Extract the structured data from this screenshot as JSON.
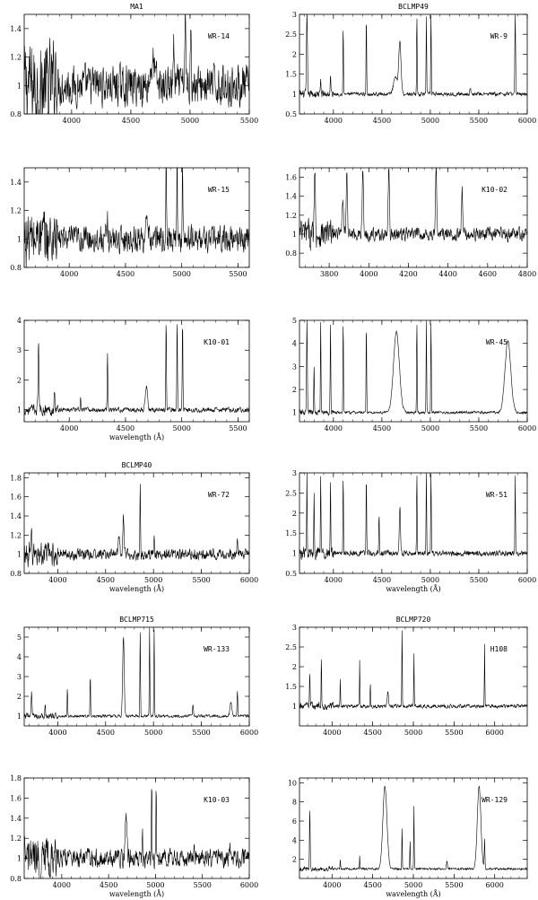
{
  "chart_data": [
    {
      "type": "line",
      "title": "MA1",
      "object": "WR-14",
      "xlabel": "",
      "xlim": [
        3600,
        5500
      ],
      "ylim": [
        0.8,
        1.5
      ],
      "xticks": [
        4000,
        4500,
        5000,
        5500
      ],
      "yticks": [
        0.8,
        1,
        1.2,
        1.4
      ],
      "continuum": 1.0,
      "noise": 0.12,
      "lines": [
        [
          3868,
          1.17,
          8
        ],
        [
          4686,
          1.16,
          18
        ],
        [
          4861,
          1.28,
          4
        ],
        [
          4959,
          1.5,
          4
        ],
        [
          5007,
          1.5,
          4
        ]
      ]
    },
    {
      "type": "line",
      "title": "BCLMP49",
      "object": "WR-9",
      "xlabel": "",
      "xlim": [
        3650,
        6000
      ],
      "ylim": [
        0.5,
        3.0
      ],
      "xticks": [
        4000,
        4500,
        5000,
        5500,
        6000
      ],
      "yticks": [
        0.5,
        1,
        1.5,
        2,
        2.5,
        3
      ],
      "continuum": 1.0,
      "noise": 0.04,
      "lines": [
        [
          3727,
          3.0,
          5
        ],
        [
          3869,
          1.4,
          3
        ],
        [
          3970,
          1.5,
          3
        ],
        [
          4101,
          2.7,
          3
        ],
        [
          4340,
          3.0,
          3
        ],
        [
          4640,
          1.4,
          20
        ],
        [
          4686,
          2.3,
          12
        ],
        [
          4861,
          3.0,
          3
        ],
        [
          4959,
          3.0,
          3
        ],
        [
          5007,
          3.0,
          3
        ],
        [
          5412,
          1.15,
          5
        ],
        [
          5876,
          3.0,
          4
        ]
      ]
    },
    {
      "type": "line",
      "title": "",
      "object": "WR-15",
      "xlabel": "",
      "xlim": [
        3600,
        5600
      ],
      "ylim": [
        0.8,
        1.5
      ],
      "xticks": [
        4000,
        4500,
        5000,
        5500
      ],
      "yticks": [
        0.8,
        1,
        1.2,
        1.4
      ],
      "continuum": 1.0,
      "noise": 0.08,
      "lines": [
        [
          3727,
          1.17,
          4
        ],
        [
          3869,
          1.13,
          3
        ],
        [
          4340,
          1.14,
          3
        ],
        [
          4686,
          1.1,
          10
        ],
        [
          4861,
          1.5,
          3
        ],
        [
          4959,
          1.5,
          3
        ],
        [
          5007,
          1.5,
          3
        ]
      ]
    },
    {
      "type": "line",
      "title": "",
      "object": "K10-02",
      "xlabel": "",
      "xlim": [
        3650,
        4800
      ],
      "ylim": [
        0.65,
        1.7
      ],
      "xticks": [
        3800,
        4000,
        4200,
        4400,
        4600,
        4800
      ],
      "yticks": [
        0.8,
        1,
        1.2,
        1.4,
        1.6
      ],
      "continuum": 1.0,
      "noise": 0.06,
      "lines": [
        [
          3727,
          1.7,
          3
        ],
        [
          3869,
          1.4,
          4
        ],
        [
          3889,
          1.7,
          3
        ],
        [
          3970,
          1.7,
          3
        ],
        [
          4101,
          1.7,
          3
        ],
        [
          4340,
          1.7,
          3
        ],
        [
          4471,
          1.45,
          3
        ]
      ]
    },
    {
      "type": "line",
      "title": "",
      "object": "K10-01",
      "xlabel": "wavelength (Å)",
      "xlim": [
        3600,
        5600
      ],
      "ylim": [
        0.6,
        4.0
      ],
      "xticks": [
        4000,
        4500,
        5000,
        5500
      ],
      "yticks": [
        1,
        2,
        3,
        4
      ],
      "continuum": 1.0,
      "noise": 0.07,
      "lines": [
        [
          3727,
          3.3,
          4
        ],
        [
          3869,
          1.7,
          3
        ],
        [
          4101,
          1.5,
          3
        ],
        [
          4340,
          2.9,
          3
        ],
        [
          4686,
          1.8,
          10
        ],
        [
          4861,
          4.0,
          3
        ],
        [
          4959,
          4.0,
          3
        ],
        [
          5007,
          4.0,
          3
        ]
      ]
    },
    {
      "type": "line",
      "title": "",
      "object": "WR-45",
      "xlabel": "",
      "xlim": [
        3650,
        6000
      ],
      "ylim": [
        0.6,
        5.0
      ],
      "xticks": [
        4000,
        4500,
        5000,
        5500,
        6000
      ],
      "yticks": [
        1,
        2,
        3,
        4,
        5
      ],
      "continuum": 1.0,
      "noise": 0.05,
      "lines": [
        [
          3727,
          5.0,
          4
        ],
        [
          3800,
          3.0,
          3
        ],
        [
          3869,
          5.0,
          3
        ],
        [
          3970,
          5.0,
          3
        ],
        [
          4101,
          5.0,
          3
        ],
        [
          4340,
          5.0,
          3
        ],
        [
          4650,
          4.5,
          30
        ],
        [
          4861,
          5.0,
          3
        ],
        [
          4959,
          5.0,
          3
        ],
        [
          5007,
          5.0,
          3
        ],
        [
          5800,
          4.1,
          30
        ]
      ]
    },
    {
      "type": "line",
      "title": "BCLMP40",
      "object": "WR-72",
      "xlabel": "wavelength (Å)",
      "xlim": [
        3650,
        6000
      ],
      "ylim": [
        0.8,
        1.85
      ],
      "xticks": [
        4000,
        4500,
        5000,
        5500,
        6000
      ],
      "yticks": [
        0.8,
        1,
        1.2,
        1.4,
        1.6,
        1.8
      ],
      "continuum": 1.0,
      "noise": 0.05,
      "lines": [
        [
          3727,
          1.2,
          4
        ],
        [
          4640,
          1.2,
          8
        ],
        [
          4686,
          1.4,
          6
        ],
        [
          4861,
          1.75,
          3
        ],
        [
          5007,
          1.15,
          3
        ],
        [
          5876,
          1.2,
          4
        ]
      ]
    },
    {
      "type": "line",
      "title": "",
      "object": "WR-51",
      "xlabel": "wavelength (Å)",
      "xlim": [
        3650,
        6000
      ],
      "ylim": [
        0.5,
        3.0
      ],
      "xticks": [
        4000,
        4500,
        5000,
        5500,
        6000
      ],
      "yticks": [
        0.5,
        1,
        1.5,
        2,
        2.5,
        3
      ],
      "continuum": 1.0,
      "noise": 0.06,
      "lines": [
        [
          3727,
          3.0,
          3
        ],
        [
          3800,
          2.6,
          3
        ],
        [
          3869,
          3.0,
          3
        ],
        [
          3970,
          3.0,
          3
        ],
        [
          4101,
          3.0,
          3
        ],
        [
          4340,
          3.0,
          3
        ],
        [
          4471,
          2.0,
          3
        ],
        [
          4686,
          2.2,
          6
        ],
        [
          4861,
          3.0,
          3
        ],
        [
          4959,
          3.0,
          3
        ],
        [
          5007,
          3.0,
          3
        ],
        [
          5876,
          3.0,
          3
        ]
      ]
    },
    {
      "type": "line",
      "title": "BCLMP715",
      "object": "WR-133",
      "xlabel": "",
      "xlim": [
        3650,
        6000
      ],
      "ylim": [
        0.5,
        5.5
      ],
      "xticks": [
        4000,
        4500,
        5000,
        5500,
        6000
      ],
      "yticks": [
        1,
        2,
        3,
        4,
        5
      ],
      "continuum": 1.0,
      "noise": 0.06,
      "lines": [
        [
          3727,
          2.2,
          4
        ],
        [
          3869,
          1.6,
          3
        ],
        [
          4101,
          2.4,
          3
        ],
        [
          4340,
          3.1,
          3
        ],
        [
          4686,
          5.0,
          8
        ],
        [
          4861,
          5.5,
          3
        ],
        [
          4959,
          5.5,
          3
        ],
        [
          5007,
          5.5,
          3
        ],
        [
          5412,
          1.6,
          4
        ],
        [
          5808,
          1.7,
          10
        ],
        [
          5876,
          2.3,
          4
        ]
      ]
    },
    {
      "type": "line",
      "title": "BCLMP720",
      "object": "H108",
      "xlabel": "",
      "xlim": [
        3600,
        6400
      ],
      "ylim": [
        0.5,
        3.0
      ],
      "xticks": [
        4000,
        4500,
        5000,
        5500,
        6000
      ],
      "yticks": [
        1,
        1.5,
        2,
        2.5,
        3
      ],
      "continuum": 1.0,
      "noise": 0.04,
      "lines": [
        [
          3727,
          1.8,
          4
        ],
        [
          3869,
          2.3,
          3
        ],
        [
          4101,
          1.7,
          3
        ],
        [
          4340,
          2.2,
          3
        ],
        [
          4471,
          1.6,
          3
        ],
        [
          4686,
          1.4,
          8
        ],
        [
          4861,
          3.0,
          3
        ],
        [
          5007,
          2.4,
          3
        ],
        [
          5876,
          2.6,
          3
        ]
      ]
    },
    {
      "type": "line",
      "title": "",
      "object": "K10-03",
      "xlabel": "wavelength (Å)",
      "xlim": [
        3600,
        6000
      ],
      "ylim": [
        0.8,
        1.8
      ],
      "xticks": [
        4000,
        4500,
        5000,
        5500,
        6000
      ],
      "yticks": [
        0.8,
        1,
        1.2,
        1.4,
        1.6,
        1.8
      ],
      "continuum": 1.0,
      "noise": 0.08,
      "lines": [
        [
          4686,
          1.42,
          10
        ],
        [
          4861,
          1.4,
          3
        ],
        [
          4959,
          1.8,
          3
        ],
        [
          5007,
          1.8,
          3
        ],
        [
          5412,
          1.07,
          4
        ],
        [
          5800,
          1.07,
          10
        ]
      ]
    },
    {
      "type": "line",
      "title": "",
      "object": "WR-129",
      "xlabel": "wavelength (Å)",
      "xlim": [
        3600,
        6400
      ],
      "ylim": [
        0.0,
        10.5
      ],
      "xticks": [
        4000,
        4500,
        5000,
        5500,
        6000
      ],
      "yticks": [
        2,
        4,
        6,
        8,
        10
      ],
      "continuum": 1.0,
      "noise": 0.1,
      "lines": [
        [
          3727,
          7.2,
          4
        ],
        [
          4101,
          2.0,
          3
        ],
        [
          4340,
          2.5,
          3
        ],
        [
          4650,
          9.7,
          25
        ],
        [
          4861,
          5.5,
          3
        ],
        [
          4959,
          4.0,
          3
        ],
        [
          5007,
          8.0,
          3
        ],
        [
          5412,
          1.8,
          6
        ],
        [
          5808,
          9.6,
          22
        ],
        [
          5876,
          4.0,
          4
        ]
      ]
    }
  ]
}
